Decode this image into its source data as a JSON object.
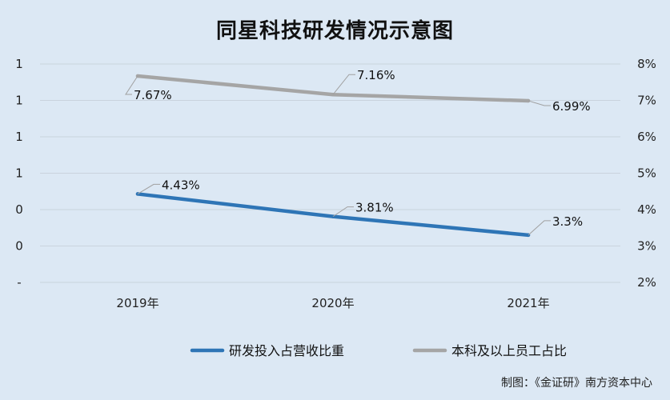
{
  "chart_data": {
    "type": "line",
    "title": "同星科技研发情况示意图",
    "categories": [
      "2019年",
      "2020年",
      "2021年"
    ],
    "y_left_ticks": [
      "1",
      "1",
      "1",
      "1",
      "0",
      "0",
      "-"
    ],
    "y_right_ticks": [
      "8%",
      "7%",
      "6%",
      "5%",
      "4%",
      "3%",
      "2%"
    ],
    "y_right_range": [
      2,
      8
    ],
    "grid": true,
    "legend_position": "bottom",
    "series": [
      {
        "name": "研发投入占营收比重",
        "values": [
          4.43,
          3.81,
          3.3
        ],
        "labels": [
          "4.43%",
          "3.81%",
          "3.3%"
        ],
        "color": "#2e75b6"
      },
      {
        "name": "本科及以上员工占比",
        "values": [
          7.67,
          7.16,
          6.99
        ],
        "labels": [
          "7.67%",
          "7.16%",
          "6.99%"
        ],
        "color": "#a5a5a5"
      }
    ]
  },
  "source_note": "制图：《金证研》南方资本中心"
}
